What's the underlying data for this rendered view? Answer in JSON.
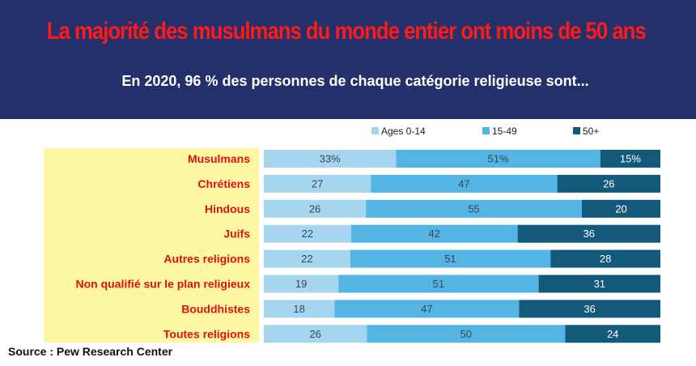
{
  "header": {
    "title": "La majorité des musulmans du monde entier ont moins de 50 ans",
    "subtitle": "En 2020, 96 % des personnes de chaque catégorie religieuse sont..."
  },
  "source": "Source : Pew Research Center",
  "colors": {
    "header_bg": "#23306a",
    "title": "#ff1a1a",
    "label_text": "#e01010",
    "label_panel": "#fdf7a3"
  },
  "chart_data": {
    "type": "bar",
    "orientation": "horizontal",
    "stacked": true,
    "title": "La majorité des musulmans du monde entier ont moins de 50 ans",
    "subtitle": "En 2020, 96 % des personnes de chaque catégorie religieuse sont...",
    "legend_position": "top",
    "categories": [
      "Musulmans",
      "Chrétiens",
      "Hindous",
      "Juifs",
      "Autres religions",
      "Non qualifié sur le plan religieux",
      "Bouddhistes",
      "Toutes religions"
    ],
    "series": [
      {
        "name": "Ages 0-14",
        "color": "#a6d6ef",
        "values": [
          33,
          27,
          26,
          22,
          22,
          19,
          18,
          26
        ],
        "labels": [
          "33%",
          "27",
          "26",
          "22",
          "22",
          "19",
          "18",
          "26"
        ]
      },
      {
        "name": "15-49",
        "color": "#54b4e4",
        "values": [
          51,
          47,
          55,
          42,
          51,
          51,
          47,
          50
        ],
        "labels": [
          "51%",
          "47",
          "55",
          "42",
          "51",
          "51",
          "47",
          "50"
        ]
      },
      {
        "name": "50+",
        "color": "#13597a",
        "values": [
          15,
          26,
          20,
          36,
          28,
          31,
          36,
          24
        ],
        "labels": [
          "15%",
          "26",
          "20",
          "36",
          "28",
          "31",
          "36",
          "24"
        ]
      }
    ],
    "xlim": [
      0,
      100
    ]
  }
}
